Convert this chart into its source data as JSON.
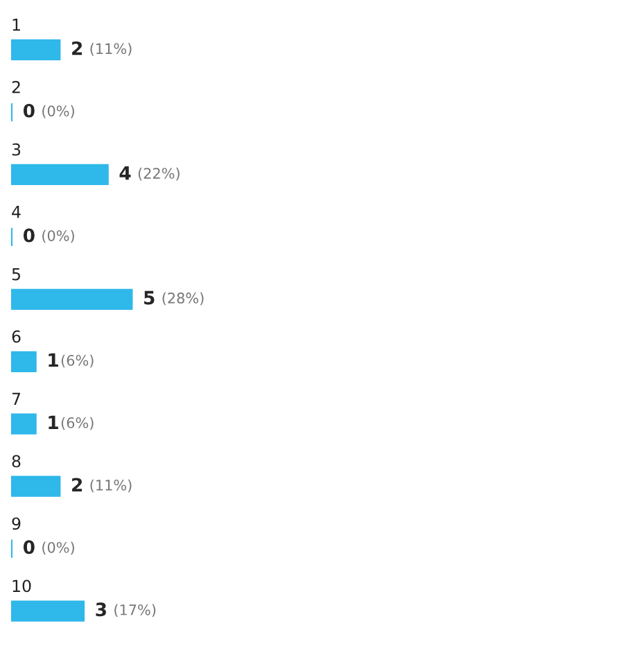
{
  "chart_data": {
    "type": "bar",
    "orientation": "horizontal",
    "categories": [
      "1",
      "2",
      "3",
      "4",
      "5",
      "6",
      "7",
      "8",
      "9",
      "10"
    ],
    "values": [
      2,
      0,
      4,
      0,
      5,
      1,
      1,
      2,
      0,
      3
    ],
    "value_labels": [
      "2 (11%)",
      "0 (0%)",
      "4 (22%)",
      "0 (0%)",
      "5 (28%)",
      "1(6%)",
      "1(6%)",
      "2 (11%)",
      "0 (0%)",
      "3 (17%)"
    ],
    "color": "#2fb8ea"
  }
}
